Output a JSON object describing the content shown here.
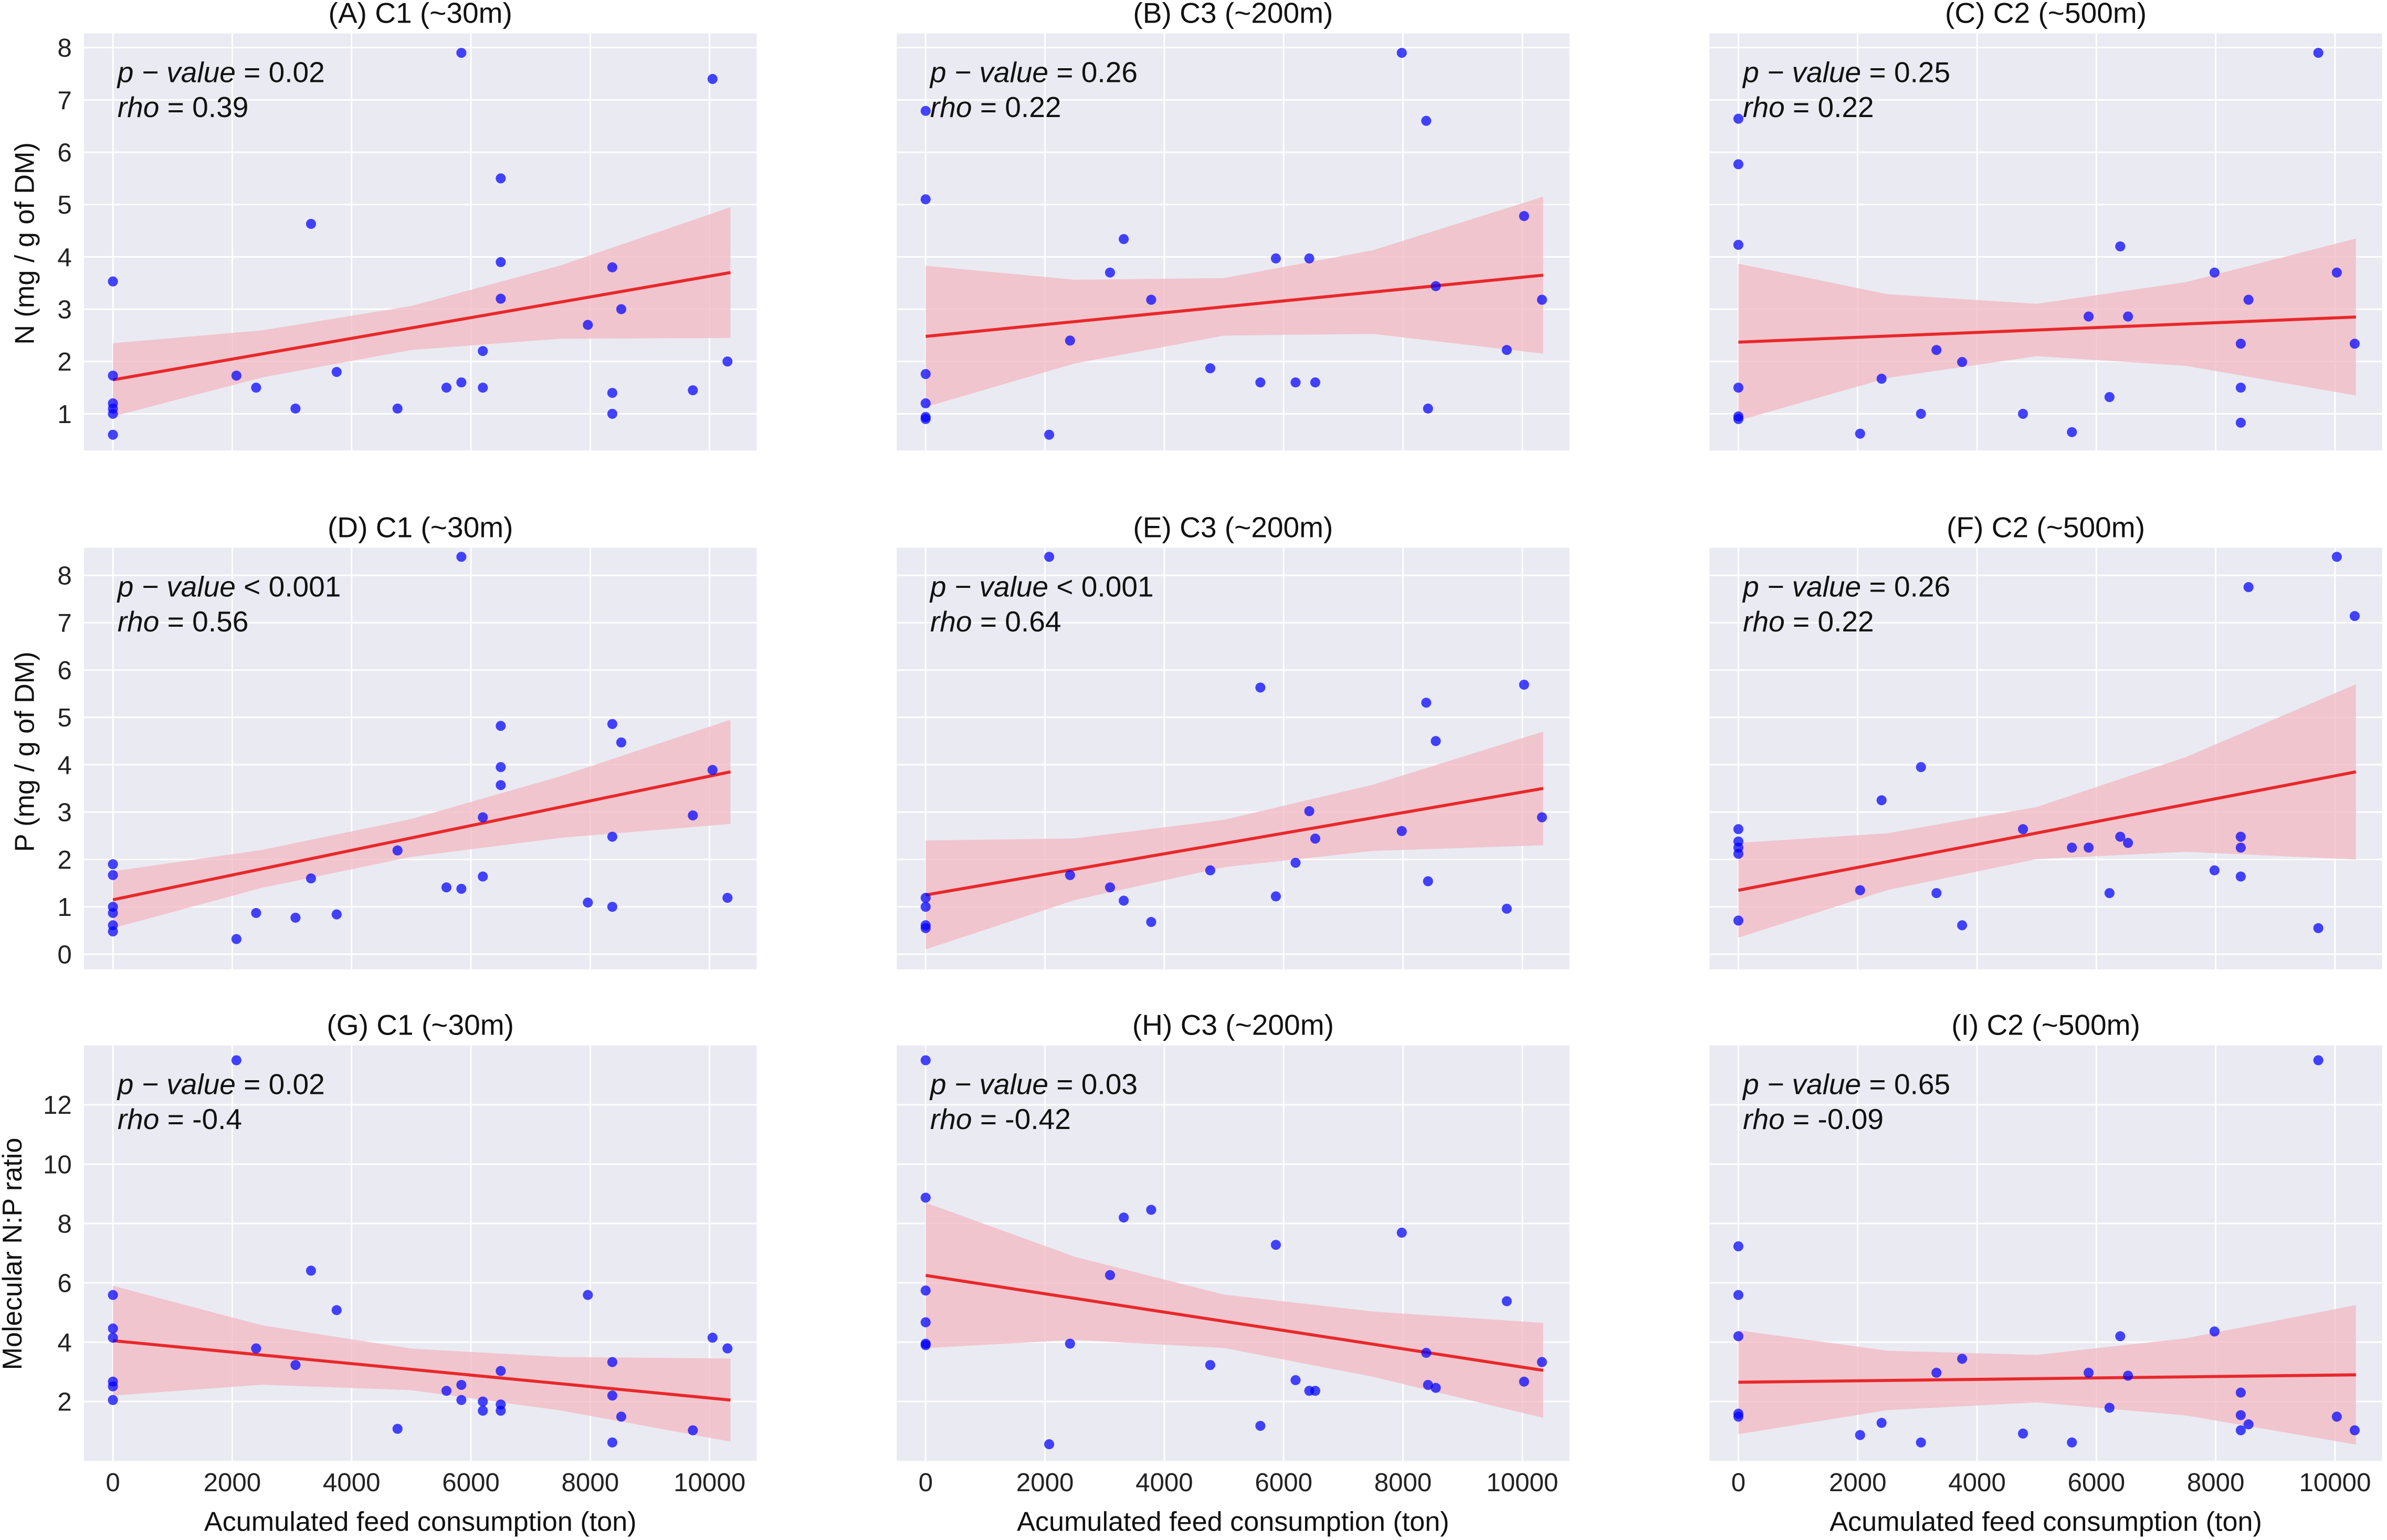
{
  "figure": {
    "xlabel": "Acumulated feed consumption (ton)",
    "row_ylabels": [
      "N (mg / g of DM)",
      "P (mg / g of DM)",
      "Molecular N:P ratio"
    ],
    "colors": {
      "background": "#EAEAF2",
      "grid": "#FFFFFF",
      "points": "#0000FF",
      "line": "#E8282B",
      "band": "#F2B8C2"
    }
  },
  "chart_data": [
    {
      "type": "scatter",
      "title": "(A)  C1 (~30m)",
      "p_label": "p − value",
      "p_text": " = 0.02",
      "rho_label": "rho",
      "rho_text": " = 0.39",
      "xlim": [
        -485,
        10790
      ],
      "ylim": [
        0.3,
        8.27
      ],
      "xticks": [
        "0",
        "2000",
        "4000",
        "6000",
        "8000",
        "10000"
      ],
      "yticks": [
        "1",
        "2",
        "3",
        "4",
        "5",
        "6",
        "7",
        "8"
      ],
      "points": [
        [
          0,
          3.53
        ],
        [
          0,
          1.73
        ],
        [
          0,
          1.1
        ],
        [
          0,
          1.0
        ],
        [
          0,
          1.2
        ],
        [
          0,
          0.6
        ],
        [
          2070,
          1.73
        ],
        [
          2400,
          1.5
        ],
        [
          3060,
          1.1
        ],
        [
          3320,
          4.63
        ],
        [
          3750,
          1.8
        ],
        [
          4770,
          1.1
        ],
        [
          5590,
          1.5
        ],
        [
          5840,
          7.9
        ],
        [
          5840,
          1.6
        ],
        [
          6200,
          2.2
        ],
        [
          6200,
          1.5
        ],
        [
          6500,
          5.5
        ],
        [
          6500,
          3.9
        ],
        [
          6500,
          3.2
        ],
        [
          7960,
          2.7
        ],
        [
          8370,
          3.8
        ],
        [
          8370,
          1.4
        ],
        [
          8370,
          1.0
        ],
        [
          8520,
          3.0
        ],
        [
          9720,
          1.45
        ],
        [
          10050,
          7.4
        ],
        [
          10300,
          2.0
        ]
      ],
      "fit": {
        "x": [
          0,
          10350
        ],
        "y": [
          1.65,
          3.7
        ]
      },
      "ci_x": [
        0,
        2500,
        5000,
        7500,
        10350
      ],
      "ci_halfwidth": [
        0.7,
        0.45,
        0.42,
        0.7,
        1.25
      ]
    },
    {
      "type": "scatter",
      "title": "(B)  C3 (~200m)",
      "p_label": "p − value",
      "p_text": " = 0.26",
      "rho_label": "rho",
      "rho_text": " = 0.22",
      "xlim": [
        -485,
        10790
      ],
      "ylim": [
        0.3,
        8.27
      ],
      "xticks": [
        "0",
        "2000",
        "4000",
        "6000",
        "8000",
        "10000"
      ],
      "yticks": [
        "1",
        "2",
        "3",
        "4",
        "5",
        "6",
        "7",
        "8"
      ],
      "points": [
        [
          0,
          6.79
        ],
        [
          0,
          5.1
        ],
        [
          0,
          1.76
        ],
        [
          0,
          1.2
        ],
        [
          0,
          0.94
        ],
        [
          0,
          0.9
        ],
        [
          2070,
          0.6
        ],
        [
          2420,
          2.4
        ],
        [
          3090,
          3.7
        ],
        [
          3320,
          4.34
        ],
        [
          3780,
          3.18
        ],
        [
          4770,
          1.87
        ],
        [
          5610,
          1.6
        ],
        [
          5870,
          3.97
        ],
        [
          6200,
          1.6
        ],
        [
          6430,
          3.97
        ],
        [
          6530,
          1.6
        ],
        [
          7980,
          7.9
        ],
        [
          8390,
          6.6
        ],
        [
          8420,
          1.1
        ],
        [
          8550,
          3.44
        ],
        [
          9740,
          2.22
        ],
        [
          10030,
          4.78
        ],
        [
          10330,
          3.18
        ]
      ],
      "fit": {
        "x": [
          0,
          10350
        ],
        "y": [
          2.48,
          3.65
        ]
      },
      "ci_x": [
        0,
        2500,
        5000,
        7500,
        10350
      ],
      "ci_halfwidth": [
        1.35,
        0.8,
        0.55,
        0.8,
        1.5
      ]
    },
    {
      "type": "scatter",
      "title": "(C)  C2 (~500m)",
      "p_label": "p − value",
      "p_text": " = 0.25",
      "rho_label": "rho",
      "rho_text": " = 0.22",
      "xlim": [
        -485,
        10790
      ],
      "ylim": [
        0.3,
        8.27
      ],
      "xticks": [
        "0",
        "2000",
        "4000",
        "6000",
        "8000",
        "10000"
      ],
      "yticks": [
        "1",
        "2",
        "3",
        "4",
        "5",
        "6",
        "7",
        "8"
      ],
      "points": [
        [
          0,
          6.64
        ],
        [
          0,
          5.77
        ],
        [
          0,
          4.23
        ],
        [
          0,
          1.5
        ],
        [
          0,
          0.9
        ],
        [
          0,
          0.95
        ],
        [
          2040,
          0.62
        ],
        [
          2400,
          1.67
        ],
        [
          3060,
          1.0
        ],
        [
          3320,
          2.22
        ],
        [
          3750,
          1.99
        ],
        [
          4770,
          1.0
        ],
        [
          5590,
          0.65
        ],
        [
          5870,
          2.86
        ],
        [
          6220,
          1.32
        ],
        [
          6400,
          4.2
        ],
        [
          6530,
          2.86
        ],
        [
          7980,
          3.7
        ],
        [
          8420,
          2.34
        ],
        [
          8420,
          1.5
        ],
        [
          8420,
          0.83
        ],
        [
          8550,
          3.18
        ],
        [
          9720,
          7.9
        ],
        [
          10030,
          3.7
        ],
        [
          10330,
          2.34
        ]
      ],
      "fit": {
        "x": [
          0,
          10350
        ],
        "y": [
          2.37,
          2.85
        ]
      },
      "ci_x": [
        0,
        2500,
        5000,
        7500,
        10350
      ],
      "ci_halfwidth": [
        1.5,
        0.8,
        0.5,
        0.8,
        1.5
      ]
    },
    {
      "type": "scatter",
      "title": "(D)  C1 (~30m)",
      "p_label": "p − value",
      "p_text": "  < 0.001",
      "rho_label": "rho",
      "rho_text": " = 0.56",
      "xlim": [
        -485,
        10790
      ],
      "ylim": [
        -0.32,
        8.58
      ],
      "xticks": [
        "0",
        "2000",
        "4000",
        "6000",
        "8000",
        "10000"
      ],
      "yticks": [
        "0",
        "1",
        "2",
        "3",
        "4",
        "5",
        "6",
        "7",
        "8"
      ],
      "points": [
        [
          0,
          1.0
        ],
        [
          0,
          1.67
        ],
        [
          0,
          1.9
        ],
        [
          0,
          0.61
        ],
        [
          0,
          0.48
        ],
        [
          0,
          0.87
        ],
        [
          2070,
          0.32
        ],
        [
          2400,
          0.87
        ],
        [
          3060,
          0.77
        ],
        [
          3320,
          1.6
        ],
        [
          3750,
          0.84
        ],
        [
          4770,
          2.19
        ],
        [
          5590,
          1.41
        ],
        [
          5840,
          8.39
        ],
        [
          5840,
          1.38
        ],
        [
          6200,
          2.89
        ],
        [
          6200,
          1.64
        ],
        [
          6500,
          3.95
        ],
        [
          6500,
          4.82
        ],
        [
          6500,
          3.57
        ],
        [
          7960,
          1.09
        ],
        [
          8370,
          4.86
        ],
        [
          8370,
          2.48
        ],
        [
          8370,
          1.0
        ],
        [
          8520,
          4.47
        ],
        [
          9720,
          2.93
        ],
        [
          10050,
          3.89
        ],
        [
          10300,
          1.19
        ]
      ],
      "fit": {
        "x": [
          0,
          10350
        ],
        "y": [
          1.15,
          3.85
        ]
      },
      "ci_x": [
        0,
        2500,
        5000,
        7500,
        10350
      ],
      "ci_halfwidth": [
        0.6,
        0.4,
        0.4,
        0.65,
        1.1
      ]
    },
    {
      "type": "scatter",
      "title": "(E)  C3 (~200m)",
      "p_label": "p − value",
      "p_text": "  < 0.001",
      "rho_label": "rho",
      "rho_text": " = 0.64",
      "xlim": [
        -485,
        10790
      ],
      "ylim": [
        -0.32,
        8.58
      ],
      "xticks": [
        "0",
        "2000",
        "4000",
        "6000",
        "8000",
        "10000"
      ],
      "yticks": [
        "0",
        "1",
        "2",
        "3",
        "4",
        "5",
        "6",
        "7",
        "8"
      ],
      "points": [
        [
          0,
          1.19
        ],
        [
          0,
          0.61
        ],
        [
          0,
          1.0
        ],
        [
          0,
          0.55
        ],
        [
          2070,
          8.39
        ],
        [
          2420,
          1.67
        ],
        [
          3090,
          1.41
        ],
        [
          3320,
          1.13
        ],
        [
          3780,
          0.68
        ],
        [
          4770,
          1.77
        ],
        [
          5610,
          5.63
        ],
        [
          5870,
          1.22
        ],
        [
          6200,
          1.93
        ],
        [
          6430,
          3.02
        ],
        [
          6530,
          2.44
        ],
        [
          7980,
          2.6
        ],
        [
          8390,
          5.31
        ],
        [
          8420,
          1.54
        ],
        [
          8550,
          4.5
        ],
        [
          9740,
          0.96
        ],
        [
          10030,
          5.69
        ],
        [
          10330,
          2.89
        ]
      ],
      "fit": {
        "x": [
          0,
          10350
        ],
        "y": [
          1.25,
          3.5
        ]
      },
      "ci_x": [
        0,
        2500,
        5000,
        7500,
        10350
      ],
      "ci_halfwidth": [
        1.15,
        0.65,
        0.5,
        0.7,
        1.2
      ]
    },
    {
      "type": "scatter",
      "title": "(F)  C2 (~500m)",
      "p_label": "p − value",
      "p_text": " = 0.26",
      "rho_label": "rho",
      "rho_text": " = 0.22",
      "xlim": [
        -485,
        10790
      ],
      "ylim": [
        -0.32,
        8.58
      ],
      "xticks": [
        "0",
        "2000",
        "4000",
        "6000",
        "8000",
        "10000"
      ],
      "yticks": [
        "0",
        "1",
        "2",
        "3",
        "4",
        "5",
        "6",
        "7",
        "8"
      ],
      "points": [
        [
          0,
          2.64
        ],
        [
          0,
          2.38
        ],
        [
          0,
          2.25
        ],
        [
          0,
          2.12
        ],
        [
          0,
          0.71
        ],
        [
          2040,
          1.35
        ],
        [
          2400,
          3.25
        ],
        [
          3060,
          3.95
        ],
        [
          3320,
          1.29
        ],
        [
          3750,
          0.61
        ],
        [
          4770,
          2.64
        ],
        [
          5590,
          2.25
        ],
        [
          5870,
          2.25
        ],
        [
          6220,
          1.29
        ],
        [
          6400,
          2.48
        ],
        [
          6530,
          2.35
        ],
        [
          7980,
          1.77
        ],
        [
          8420,
          2.48
        ],
        [
          8420,
          2.25
        ],
        [
          8420,
          1.64
        ],
        [
          8550,
          7.75
        ],
        [
          9720,
          0.55
        ],
        [
          10030,
          8.39
        ],
        [
          10330,
          7.14
        ]
      ],
      "fit": {
        "x": [
          0,
          10350
        ],
        "y": [
          1.35,
          3.85
        ]
      },
      "ci_x": [
        0,
        2500,
        5000,
        7500,
        10350
      ],
      "ci_halfwidth": [
        1.0,
        0.6,
        0.55,
        1.0,
        1.85
      ]
    },
    {
      "type": "scatter",
      "title": "(G)  C1 (~30m)",
      "p_label": "p − value",
      "p_text": " = 0.02",
      "rho_label": "rho",
      "rho_text": " = -0.4",
      "xlim": [
        -485,
        10790
      ],
      "ylim": [
        0,
        14.0
      ],
      "xticks": [
        "0",
        "2000",
        "4000",
        "6000",
        "8000",
        "10000"
      ],
      "yticks": [
        "2",
        "4",
        "6",
        "8",
        "10",
        "12"
      ],
      "points": [
        [
          0,
          5.59
        ],
        [
          0,
          4.46
        ],
        [
          0,
          4.15
        ],
        [
          0,
          2.67
        ],
        [
          0,
          2.51
        ],
        [
          0,
          2.05
        ],
        [
          2070,
          13.5
        ],
        [
          2400,
          3.79
        ],
        [
          3060,
          3.23
        ],
        [
          3320,
          6.41
        ],
        [
          3750,
          5.08
        ],
        [
          4770,
          1.08
        ],
        [
          5590,
          2.36
        ],
        [
          5840,
          2.56
        ],
        [
          5840,
          2.05
        ],
        [
          6200,
          2.0
        ],
        [
          6200,
          1.69
        ],
        [
          6500,
          3.03
        ],
        [
          6500,
          1.9
        ],
        [
          6500,
          1.69
        ],
        [
          7960,
          5.59
        ],
        [
          8370,
          3.33
        ],
        [
          8370,
          2.2
        ],
        [
          8370,
          0.62
        ],
        [
          8520,
          1.49
        ],
        [
          9720,
          1.03
        ],
        [
          10050,
          4.15
        ],
        [
          10300,
          3.79
        ]
      ],
      "fit": {
        "x": [
          0,
          10350
        ],
        "y": [
          4.05,
          2.05
        ]
      },
      "ci_x": [
        0,
        2500,
        5000,
        7500,
        10350
      ],
      "ci_halfwidth": [
        1.85,
        1.0,
        0.7,
        0.9,
        1.4
      ]
    },
    {
      "type": "scatter",
      "title": "(H)  C3 (~200m)",
      "p_label": "p − value",
      "p_text": " = 0.03",
      "rho_label": "rho",
      "rho_text": " = -0.42",
      "xlim": [
        -485,
        10790
      ],
      "ylim": [
        0,
        14.0
      ],
      "xticks": [
        "0",
        "2000",
        "4000",
        "6000",
        "8000",
        "10000"
      ],
      "yticks": [
        "2",
        "4",
        "6",
        "8",
        "10",
        "12"
      ],
      "points": [
        [
          0,
          13.5
        ],
        [
          0,
          8.87
        ],
        [
          0,
          5.74
        ],
        [
          0,
          4.67
        ],
        [
          0,
          3.9
        ],
        [
          0,
          3.95
        ],
        [
          2070,
          0.56
        ],
        [
          2420,
          3.95
        ],
        [
          3090,
          6.26
        ],
        [
          3320,
          8.2
        ],
        [
          3780,
          8.46
        ],
        [
          4770,
          3.23
        ],
        [
          5610,
          1.18
        ],
        [
          5870,
          7.28
        ],
        [
          6200,
          2.72
        ],
        [
          6430,
          2.36
        ],
        [
          6530,
          2.36
        ],
        [
          7980,
          7.69
        ],
        [
          8390,
          3.64
        ],
        [
          8420,
          2.56
        ],
        [
          8550,
          2.46
        ],
        [
          9740,
          5.38
        ],
        [
          10030,
          2.67
        ],
        [
          10330,
          3.33
        ]
      ],
      "fit": {
        "x": [
          0,
          10350
        ],
        "y": [
          6.25,
          3.05
        ]
      },
      "ci_x": [
        0,
        2500,
        5000,
        7500,
        10350
      ],
      "ci_halfwidth": [
        2.45,
        1.4,
        0.9,
        1.1,
        1.6
      ]
    },
    {
      "type": "scatter",
      "title": "(I)  C2 (~500m)",
      "p_label": "p − value",
      "p_text": " = 0.65",
      "rho_label": "rho",
      "rho_text": " = -0.09",
      "xlim": [
        -485,
        10790
      ],
      "ylim": [
        0,
        14.0
      ],
      "xticks": [
        "0",
        "2000",
        "4000",
        "6000",
        "8000",
        "10000"
      ],
      "yticks": [
        "2",
        "4",
        "6",
        "8",
        "10",
        "12"
      ],
      "points": [
        [
          0,
          7.23
        ],
        [
          0,
          5.59
        ],
        [
          0,
          4.2
        ],
        [
          0,
          1.59
        ],
        [
          0,
          1.49
        ],
        [
          2040,
          0.87
        ],
        [
          2400,
          1.28
        ],
        [
          3060,
          0.62
        ],
        [
          3320,
          2.97
        ],
        [
          3750,
          3.44
        ],
        [
          4770,
          0.92
        ],
        [
          5590,
          0.62
        ],
        [
          5870,
          2.97
        ],
        [
          6220,
          1.79
        ],
        [
          6400,
          4.2
        ],
        [
          6530,
          2.87
        ],
        [
          7980,
          4.36
        ],
        [
          8420,
          2.3
        ],
        [
          8420,
          1.54
        ],
        [
          8420,
          1.03
        ],
        [
          8550,
          1.23
        ],
        [
          9720,
          13.5
        ],
        [
          10030,
          1.49
        ],
        [
          10330,
          1.03
        ]
      ],
      "fit": {
        "x": [
          0,
          10350
        ],
        "y": [
          2.65,
          2.9
        ]
      },
      "ci_x": [
        0,
        2500,
        5000,
        7500,
        10350
      ],
      "ci_halfwidth": [
        1.75,
        1.0,
        0.8,
        1.3,
        2.35
      ]
    }
  ]
}
